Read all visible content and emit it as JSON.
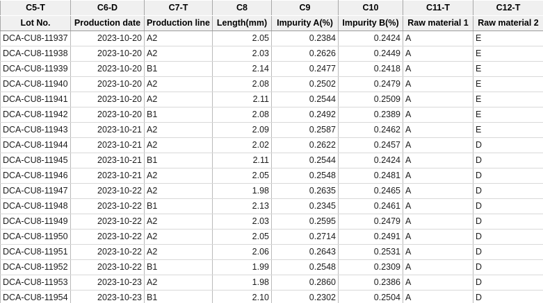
{
  "table": {
    "field_headers": [
      "C5-T",
      "C6-D",
      "C7-T",
      "C8",
      "C9",
      "C10",
      "C11-T",
      "C12-T"
    ],
    "column_headers": [
      "Lot No.",
      "Production date",
      "Production line",
      "Length(mm)",
      "Impurity A(%)",
      "Impurity B(%)",
      "Raw material 1",
      "Raw material 2"
    ],
    "rows": [
      [
        "DCA-CU8-11937",
        "2023-10-20",
        "A2",
        "2.05",
        "0.2384",
        "0.2424",
        "A",
        "E"
      ],
      [
        "DCA-CU8-11938",
        "2023-10-20",
        "A2",
        "2.03",
        "0.2626",
        "0.2449",
        "A",
        "E"
      ],
      [
        "DCA-CU8-11939",
        "2023-10-20",
        "B1",
        "2.14",
        "0.2477",
        "0.2418",
        "A",
        "E"
      ],
      [
        "DCA-CU8-11940",
        "2023-10-20",
        "A2",
        "2.08",
        "0.2502",
        "0.2479",
        "A",
        "E"
      ],
      [
        "DCA-CU8-11941",
        "2023-10-20",
        "A2",
        "2.11",
        "0.2544",
        "0.2509",
        "A",
        "E"
      ],
      [
        "DCA-CU8-11942",
        "2023-10-20",
        "B1",
        "2.08",
        "0.2492",
        "0.2389",
        "A",
        "E"
      ],
      [
        "DCA-CU8-11943",
        "2023-10-21",
        "A2",
        "2.09",
        "0.2587",
        "0.2462",
        "A",
        "E"
      ],
      [
        "DCA-CU8-11944",
        "2023-10-21",
        "A2",
        "2.02",
        "0.2622",
        "0.2457",
        "A",
        "D"
      ],
      [
        "DCA-CU8-11945",
        "2023-10-21",
        "B1",
        "2.11",
        "0.2544",
        "0.2424",
        "A",
        "D"
      ],
      [
        "DCA-CU8-11946",
        "2023-10-21",
        "A2",
        "2.05",
        "0.2548",
        "0.2481",
        "A",
        "D"
      ],
      [
        "DCA-CU8-11947",
        "2023-10-22",
        "A2",
        "1.98",
        "0.2635",
        "0.2465",
        "A",
        "D"
      ],
      [
        "DCA-CU8-11948",
        "2023-10-22",
        "B1",
        "2.13",
        "0.2345",
        "0.2461",
        "A",
        "D"
      ],
      [
        "DCA-CU8-11949",
        "2023-10-22",
        "A2",
        "2.03",
        "0.2595",
        "0.2479",
        "A",
        "D"
      ],
      [
        "DCA-CU8-11950",
        "2023-10-22",
        "A2",
        "2.05",
        "0.2714",
        "0.2491",
        "A",
        "D"
      ],
      [
        "DCA-CU8-11951",
        "2023-10-22",
        "A2",
        "2.06",
        "0.2643",
        "0.2531",
        "A",
        "D"
      ],
      [
        "DCA-CU8-11952",
        "2023-10-22",
        "B1",
        "1.99",
        "0.2548",
        "0.2309",
        "A",
        "D"
      ],
      [
        "DCA-CU8-11953",
        "2023-10-23",
        "A2",
        "1.98",
        "0.2860",
        "0.2386",
        "A",
        "D"
      ],
      [
        "DCA-CU8-11954",
        "2023-10-23",
        "B1",
        "2.10",
        "0.2302",
        "0.2504",
        "A",
        "D"
      ]
    ],
    "column_alignments": [
      "left",
      "right",
      "left",
      "right",
      "right",
      "right",
      "left",
      "left"
    ],
    "colors": {
      "header_background": "#f0f0f0",
      "header_text": "#000000",
      "body_text": "#1c1c1c",
      "grid_vertical": "#b9b9b9",
      "grid_horizontal": "#d8d8d8",
      "header_grid_vertical": "#a8a8a8",
      "header_bottom_border": "#9b9b9b",
      "header_row_separator": "#ffffff"
    }
  }
}
